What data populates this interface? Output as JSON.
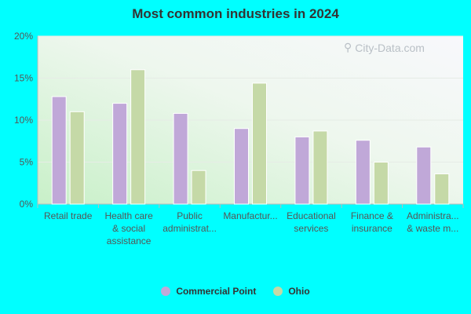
{
  "chart_data": {
    "type": "bar",
    "title": "Most common industries in 2024",
    "xlabel": "",
    "ylabel": "",
    "ylim": [
      0,
      20
    ],
    "yticks": [
      "0%",
      "5%",
      "10%",
      "15%",
      "20%"
    ],
    "ytick_values": [
      0,
      5,
      10,
      15,
      20
    ],
    "grid": true,
    "legend_placement": "bottom",
    "categories": [
      [
        "Retail trade"
      ],
      [
        "Health care",
        "& social",
        "assistance"
      ],
      [
        "Public",
        "administrat..."
      ],
      [
        "Manufactur..."
      ],
      [
        "Educational",
        "services"
      ],
      [
        "Finance &",
        "insurance"
      ],
      [
        "Administra...",
        "& waste m..."
      ]
    ],
    "series": [
      {
        "name": "Commercial Point",
        "color": "#c0a8d8",
        "values": [
          12.8,
          12.0,
          10.8,
          9.0,
          8.0,
          7.6,
          6.8
        ]
      },
      {
        "name": "Ohio",
        "color": "#c5d9a7",
        "values": [
          11.0,
          16.0,
          4.0,
          14.4,
          8.7,
          5.0,
          3.6
        ]
      }
    ]
  },
  "watermark": "City-Data.com",
  "colors": {
    "background": "#00ffff",
    "text": "#555555"
  }
}
